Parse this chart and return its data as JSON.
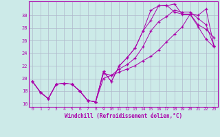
{
  "xlabel": "Windchill (Refroidissement éolien,°C)",
  "xlim": [
    -0.5,
    23.5
  ],
  "ylim": [
    15.5,
    32.2
  ],
  "yticks": [
    16,
    18,
    20,
    22,
    24,
    26,
    28,
    30
  ],
  "xticks": [
    0,
    1,
    2,
    3,
    4,
    5,
    6,
    7,
    8,
    9,
    10,
    11,
    12,
    13,
    14,
    15,
    16,
    17,
    18,
    19,
    20,
    21,
    22,
    23
  ],
  "background_color": "#cceae8",
  "grid_color": "#b0b8cc",
  "line_color": "#aa00aa",
  "line1": [
    19.5,
    17.8,
    16.8,
    19.1,
    19.2,
    19.1,
    18.0,
    16.5,
    16.3,
    21.1,
    19.5,
    22.0,
    23.3,
    24.8,
    27.5,
    29.2,
    31.5,
    31.5,
    31.8,
    30.1,
    30.1,
    28.2,
    26.2,
    25.0
  ],
  "line2": [
    19.5,
    17.8,
    16.8,
    19.1,
    19.2,
    19.1,
    18.0,
    16.5,
    16.3,
    21.1,
    19.5,
    22.0,
    23.3,
    24.8,
    27.5,
    30.8,
    31.5,
    31.6,
    30.5,
    30.2,
    30.2,
    28.5,
    27.8,
    26.5
  ],
  "line3": [
    19.5,
    17.8,
    16.8,
    19.1,
    19.2,
    19.1,
    18.0,
    16.5,
    16.3,
    20.8,
    20.5,
    21.5,
    22.2,
    23.2,
    25.0,
    27.5,
    29.0,
    29.8,
    30.8,
    30.5,
    30.5,
    29.5,
    28.5,
    25.2
  ],
  "line4": [
    19.5,
    17.8,
    16.8,
    19.1,
    19.2,
    19.1,
    18.0,
    16.5,
    16.3,
    20.0,
    20.5,
    21.0,
    21.5,
    22.0,
    22.8,
    23.5,
    24.5,
    25.8,
    27.0,
    28.2,
    30.2,
    30.0,
    31.0,
    25.2
  ]
}
